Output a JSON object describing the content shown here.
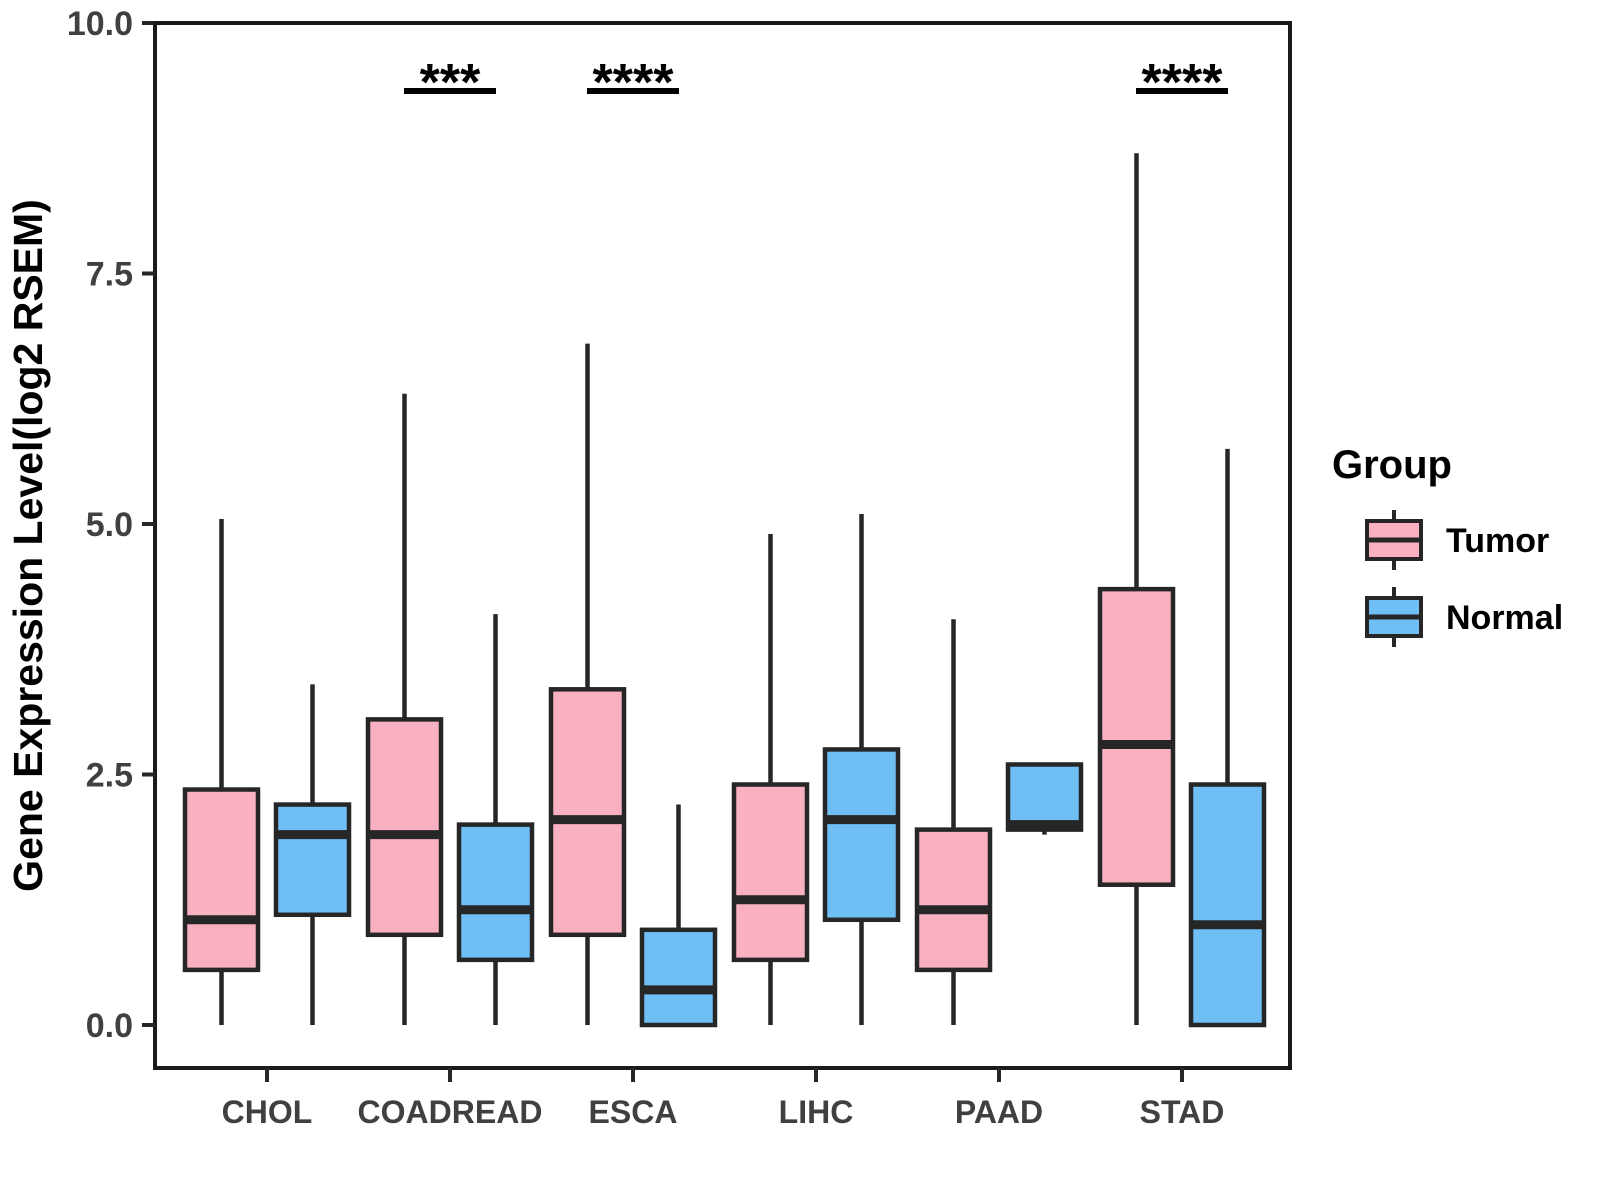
{
  "styles": {
    "tumor_fill": "#F9B0C1",
    "normal_fill": "#6FBFF5",
    "box_stroke": "#262626",
    "panel_stroke": "#1a1a1a",
    "axis_text_color": "#404040",
    "title_text_color": "#000000",
    "background": "#ffffff"
  },
  "chart_data": {
    "type": "boxplot",
    "title": "",
    "xlabel": "",
    "ylabel": "Gene Expression Level(log2 RSEM)",
    "ylim": [
      0,
      10
    ],
    "yticks": [
      "0.0",
      "2.5",
      "5.0",
      "7.5",
      "10.0"
    ],
    "ytick_values": [
      0.0,
      2.5,
      5.0,
      7.5,
      10.0
    ],
    "grid": "off",
    "panel_border": "on",
    "categories": [
      "CHOL",
      "COADREAD",
      "ESCA",
      "LIHC",
      "PAAD",
      "STAD"
    ],
    "legend": {
      "title": "Group",
      "position": "right",
      "entries": [
        {
          "label": "Tumor",
          "color": "#F9B0C1"
        },
        {
          "label": "Normal",
          "color": "#6FBFF5"
        }
      ]
    },
    "series": [
      {
        "name": "Tumor",
        "color": "#F9B0C1",
        "boxes": [
          {
            "category": "CHOL",
            "low": 0.0,
            "q1": 0.55,
            "median": 1.05,
            "q3": 2.35,
            "high": 5.05
          },
          {
            "category": "COADREAD",
            "low": 0.0,
            "q1": 0.9,
            "median": 1.9,
            "q3": 3.05,
            "high": 6.3
          },
          {
            "category": "ESCA",
            "low": 0.0,
            "q1": 0.9,
            "median": 2.05,
            "q3": 3.35,
            "high": 6.8
          },
          {
            "category": "LIHC",
            "low": 0.0,
            "q1": 0.65,
            "median": 1.25,
            "q3": 2.4,
            "high": 4.9
          },
          {
            "category": "PAAD",
            "low": 0.0,
            "q1": 0.55,
            "median": 1.15,
            "q3": 1.95,
            "high": 4.05
          },
          {
            "category": "STAD",
            "low": 0.0,
            "q1": 1.4,
            "median": 2.8,
            "q3": 4.35,
            "high": 8.7
          }
        ]
      },
      {
        "name": "Normal",
        "color": "#6FBFF5",
        "boxes": [
          {
            "category": "CHOL",
            "low": 0.0,
            "q1": 1.1,
            "median": 1.9,
            "q3": 2.2,
            "high": 3.4
          },
          {
            "category": "COADREAD",
            "low": 0.0,
            "q1": 0.65,
            "median": 1.15,
            "q3": 2.0,
            "high": 4.1
          },
          {
            "category": "ESCA",
            "low": 0.0,
            "q1": 0.0,
            "median": 0.35,
            "q3": 0.95,
            "high": 2.2
          },
          {
            "category": "LIHC",
            "low": 0.0,
            "q1": 1.05,
            "median": 2.05,
            "q3": 2.75,
            "high": 5.1
          },
          {
            "category": "PAAD",
            "low": 1.9,
            "q1": 1.95,
            "median": 2.0,
            "q3": 2.6,
            "high": 2.6
          },
          {
            "category": "STAD",
            "low": 0.0,
            "q1": 0.0,
            "median": 1.0,
            "q3": 2.4,
            "high": 5.75
          }
        ]
      }
    ],
    "annotations": [
      {
        "category": "COADREAD",
        "text": "***"
      },
      {
        "category": "ESCA",
        "text": "****"
      },
      {
        "category": "STAD",
        "text": "****"
      }
    ]
  }
}
